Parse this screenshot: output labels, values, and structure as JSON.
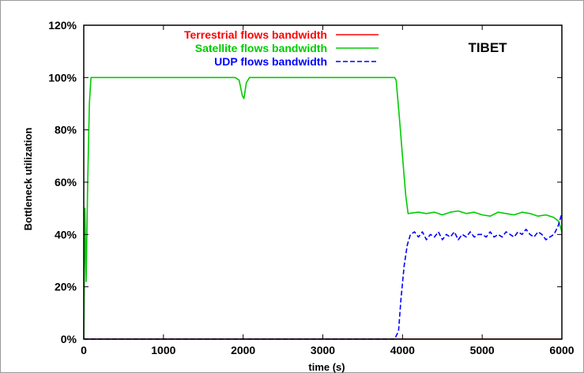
{
  "chart_data": {
    "type": "line",
    "annotation": "TIBET",
    "xlabel": "time (s)",
    "ylabel": "Bottleneck utilization",
    "xlim": [
      0,
      6000
    ],
    "ylim": [
      0,
      120
    ],
    "x_ticks": [
      "0",
      "1000",
      "2000",
      "3000",
      "4000",
      "5000",
      "6000"
    ],
    "y_ticks": [
      "0%",
      "20%",
      "40%",
      "60%",
      "80%",
      "100%",
      "120%"
    ],
    "legend_position": "top-right",
    "series": [
      {
        "name": "Terrestrial flows bandwidth",
        "color": "#ff0000",
        "style": "solid",
        "points": [
          [
            0,
            0
          ],
          [
            6000,
            0
          ]
        ]
      },
      {
        "name": "Satellite flows bandwidth",
        "color": "#00cc00",
        "style": "solid",
        "points": [
          [
            0,
            0
          ],
          [
            15,
            50
          ],
          [
            30,
            22
          ],
          [
            50,
            60
          ],
          [
            70,
            90
          ],
          [
            90,
            100
          ],
          [
            1900,
            100
          ],
          [
            1950,
            99
          ],
          [
            1990,
            93
          ],
          [
            2010,
            92
          ],
          [
            2040,
            98
          ],
          [
            2080,
            100
          ],
          [
            3900,
            100
          ],
          [
            3920,
            99
          ],
          [
            3960,
            85
          ],
          [
            4000,
            70
          ],
          [
            4040,
            55
          ],
          [
            4070,
            48
          ],
          [
            4200,
            48.5
          ],
          [
            4300,
            48
          ],
          [
            4400,
            48.5
          ],
          [
            4500,
            47.5
          ],
          [
            4600,
            48.5
          ],
          [
            4700,
            49
          ],
          [
            4800,
            48
          ],
          [
            4900,
            48.5
          ],
          [
            5000,
            47.5
          ],
          [
            5100,
            47
          ],
          [
            5200,
            48.5
          ],
          [
            5300,
            48
          ],
          [
            5400,
            47.5
          ],
          [
            5500,
            48.5
          ],
          [
            5600,
            48
          ],
          [
            5700,
            47
          ],
          [
            5800,
            47.5
          ],
          [
            5900,
            46.5
          ],
          [
            5960,
            45
          ],
          [
            6000,
            41
          ]
        ]
      },
      {
        "name": "UDP flows bandwidth",
        "color": "#0000ff",
        "style": "dashed",
        "points": [
          [
            0,
            0
          ],
          [
            3900,
            0
          ],
          [
            3950,
            3
          ],
          [
            3980,
            15
          ],
          [
            4020,
            28
          ],
          [
            4060,
            36
          ],
          [
            4100,
            40
          ],
          [
            4150,
            41
          ],
          [
            4200,
            39
          ],
          [
            4250,
            41
          ],
          [
            4300,
            38
          ],
          [
            4350,
            40
          ],
          [
            4400,
            39
          ],
          [
            4450,
            41
          ],
          [
            4500,
            38
          ],
          [
            4550,
            40
          ],
          [
            4600,
            39
          ],
          [
            4650,
            41
          ],
          [
            4700,
            38
          ],
          [
            4750,
            40
          ],
          [
            4800,
            39
          ],
          [
            4850,
            41
          ],
          [
            4900,
            39
          ],
          [
            4950,
            40
          ],
          [
            5000,
            40
          ],
          [
            5050,
            39
          ],
          [
            5100,
            41
          ],
          [
            5150,
            39
          ],
          [
            5200,
            40
          ],
          [
            5250,
            39
          ],
          [
            5300,
            41
          ],
          [
            5350,
            40
          ],
          [
            5400,
            39
          ],
          [
            5450,
            41
          ],
          [
            5500,
            40
          ],
          [
            5550,
            42
          ],
          [
            5600,
            40
          ],
          [
            5650,
            39
          ],
          [
            5700,
            41
          ],
          [
            5750,
            40
          ],
          [
            5800,
            38
          ],
          [
            5850,
            39
          ],
          [
            5900,
            40
          ],
          [
            5950,
            43
          ],
          [
            5980,
            46
          ],
          [
            6000,
            48
          ]
        ]
      }
    ]
  }
}
